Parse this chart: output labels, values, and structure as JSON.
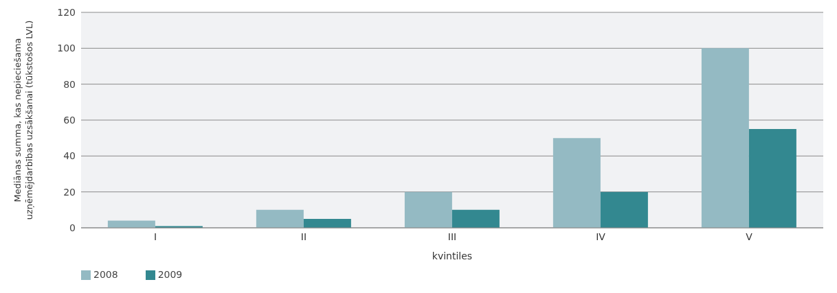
{
  "chart_data": {
    "type": "bar",
    "xlabel": "kvintiles",
    "ylabel": "Mediānas summa, kas nepieciešama uzņēmējdarbības uzsākšanai (tūkstošos LVL)",
    "categories": [
      "I",
      "II",
      "III",
      "IV",
      "V"
    ],
    "series": [
      {
        "name": "2008",
        "color": "#94bac3",
        "values": [
          4,
          10,
          20,
          50,
          100
        ]
      },
      {
        "name": "2009",
        "color": "#338890",
        "values": [
          1,
          5,
          10,
          20,
          55
        ]
      }
    ],
    "ylim": [
      0,
      120
    ],
    "yticks": [
      0,
      20,
      40,
      60,
      80,
      100,
      120
    ],
    "grid": "y",
    "legend": "bottom left"
  }
}
